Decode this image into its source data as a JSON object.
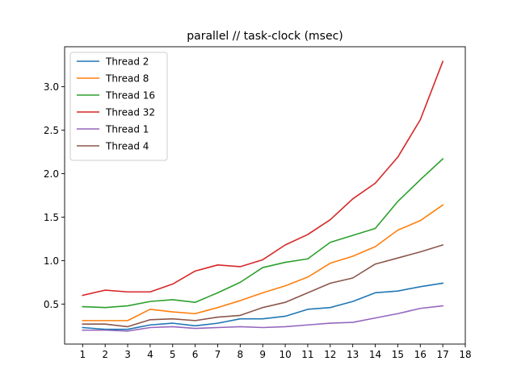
{
  "chart_data": {
    "type": "line",
    "title": "parallel // task-clock (msec)",
    "xlabel": "",
    "ylabel": "",
    "x": [
      1,
      2,
      3,
      4,
      5,
      6,
      7,
      8,
      9,
      10,
      11,
      12,
      13,
      14,
      15,
      16,
      17
    ],
    "xlim": [
      0.2,
      18.0
    ],
    "ylim": [
      0.04,
      3.46
    ],
    "xticks": [
      1,
      2,
      3,
      4,
      5,
      6,
      7,
      8,
      9,
      10,
      11,
      12,
      13,
      14,
      15,
      16,
      17,
      18
    ],
    "yticks": [
      0.5,
      1.0,
      1.5,
      2.0,
      2.5,
      3.0
    ],
    "ytick_labels": [
      "0.5",
      "1.0",
      "1.5",
      "2.0",
      "2.5",
      "3.0"
    ],
    "grid": false,
    "legend_position": "top-left",
    "series": [
      {
        "name": "Thread 2",
        "color": "#1f77b4",
        "values": [
          0.23,
          0.21,
          0.21,
          0.26,
          0.28,
          0.25,
          0.28,
          0.33,
          0.33,
          0.36,
          0.44,
          0.46,
          0.53,
          0.63,
          0.65,
          0.7,
          0.74
        ]
      },
      {
        "name": "Thread 8",
        "color": "#ff7f0e",
        "values": [
          0.31,
          0.31,
          0.31,
          0.44,
          0.41,
          0.39,
          0.46,
          0.54,
          0.63,
          0.71,
          0.81,
          0.97,
          1.05,
          1.16,
          1.35,
          1.46,
          1.64
        ]
      },
      {
        "name": "Thread 16",
        "color": "#2ca02c",
        "values": [
          0.47,
          0.46,
          0.48,
          0.53,
          0.55,
          0.52,
          0.63,
          0.75,
          0.92,
          0.98,
          1.02,
          1.21,
          1.29,
          1.37,
          1.68,
          1.93,
          2.17
        ]
      },
      {
        "name": "Thread 32",
        "color": "#d62728",
        "values": [
          0.6,
          0.66,
          0.64,
          0.64,
          0.73,
          0.88,
          0.95,
          0.93,
          1.01,
          1.18,
          1.3,
          1.47,
          1.71,
          1.89,
          2.19,
          2.62,
          3.29
        ]
      },
      {
        "name": "Thread 1",
        "color": "#9467bd",
        "values": [
          0.2,
          0.2,
          0.19,
          0.23,
          0.24,
          0.22,
          0.23,
          0.24,
          0.23,
          0.24,
          0.26,
          0.28,
          0.29,
          0.34,
          0.39,
          0.45,
          0.48
        ]
      },
      {
        "name": "Thread 4",
        "color": "#8c564b",
        "values": [
          0.27,
          0.27,
          0.24,
          0.32,
          0.33,
          0.31,
          0.35,
          0.37,
          0.46,
          0.52,
          0.63,
          0.74,
          0.8,
          0.96,
          1.03,
          1.1,
          1.18
        ]
      }
    ]
  }
}
